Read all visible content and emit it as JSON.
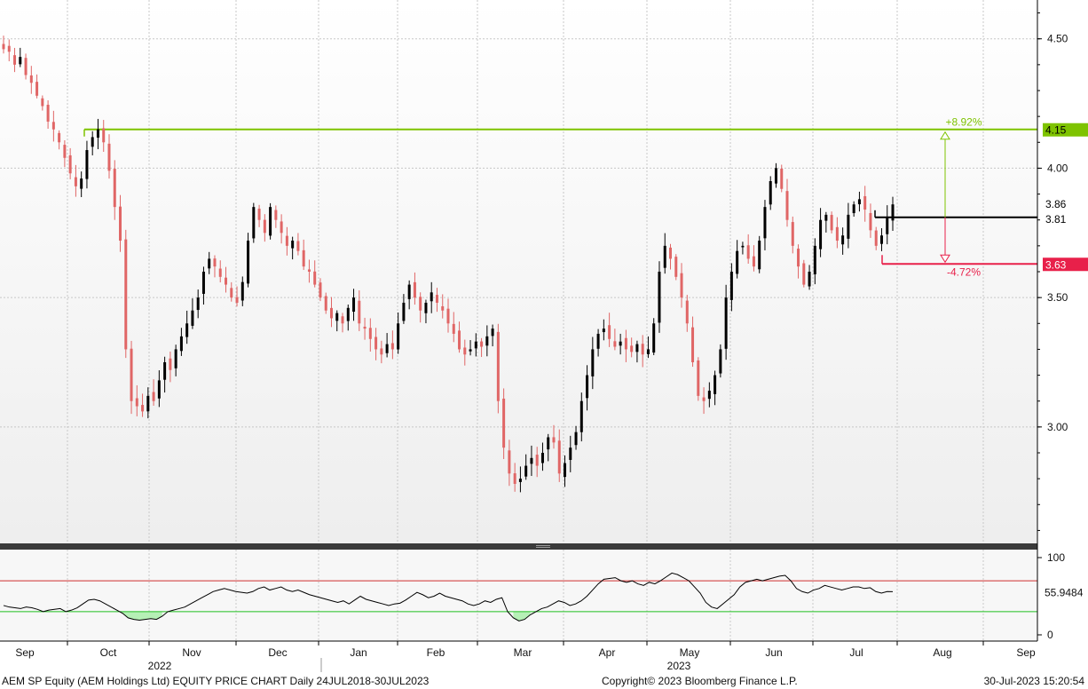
{
  "footer": {
    "left": "AEM SP Equity (AEM Holdings Ltd) EQUITY PRICE CHART  Daily 24JUL2018-30JUL2023",
    "middle": "Copyright© 2023 Bloomberg Finance L.P.",
    "right": "30-Jul-2023 15:20:54"
  },
  "chart_data": [
    {
      "type": "candlestick",
      "ylim": [
        2.55,
        4.65
      ],
      "yticks": [
        "4.50",
        "4.00",
        "3.50",
        "3.00"
      ],
      "ytick_values": [
        4.5,
        4.0,
        3.5,
        3.0
      ],
      "x_month_labels": [
        "Sep",
        "Oct",
        "Nov",
        "Dec",
        "Jan",
        "Feb",
        "Mar",
        "Apr",
        "May",
        "Jun",
        "Jul",
        "Aug",
        "Sep"
      ],
      "year_labels": [
        "2022",
        "2023"
      ],
      "grid": true,
      "up_color": "#000000",
      "down_color": "#e06666",
      "close_series": [
        4.46,
        4.45,
        4.4,
        4.43,
        4.36,
        4.33,
        4.28,
        4.24,
        4.18,
        4.15,
        4.1,
        4.04,
        3.98,
        3.93,
        3.96,
        4.07,
        4.12,
        4.15,
        4.1,
        3.99,
        3.85,
        3.72,
        3.3,
        3.1,
        3.08,
        3.06,
        3.12,
        3.1,
        3.18,
        3.25,
        3.22,
        3.3,
        3.35,
        3.4,
        3.45,
        3.5,
        3.6,
        3.65,
        3.62,
        3.58,
        3.55,
        3.5,
        3.48,
        3.56,
        3.72,
        3.85,
        3.8,
        3.75,
        3.85,
        3.8,
        3.75,
        3.7,
        3.72,
        3.68,
        3.62,
        3.6,
        3.55,
        3.5,
        3.45,
        3.42,
        3.44,
        3.4,
        3.46,
        3.5,
        3.4,
        3.38,
        3.34,
        3.3,
        3.28,
        3.32,
        3.3,
        3.4,
        3.48,
        3.55,
        3.5,
        3.45,
        3.48,
        3.52,
        3.48,
        3.45,
        3.4,
        3.36,
        3.3,
        3.28,
        3.3,
        3.33,
        3.31,
        3.35,
        3.38,
        3.1,
        2.92,
        2.82,
        2.78,
        2.8,
        2.85,
        2.88,
        2.85,
        2.9,
        2.96,
        2.94,
        2.82,
        2.86,
        2.92,
        2.98,
        3.1,
        3.2,
        3.3,
        3.36,
        3.38,
        3.34,
        3.31,
        3.33,
        3.3,
        3.29,
        3.32,
        3.28,
        3.3,
        3.4,
        3.6,
        3.7,
        3.65,
        3.58,
        3.5,
        3.4,
        3.25,
        3.12,
        3.1,
        3.14,
        3.2,
        3.3,
        3.5,
        3.6,
        3.68,
        3.7,
        3.65,
        3.62,
        3.72,
        3.85,
        3.95,
        4.0,
        3.92,
        3.8,
        3.7,
        3.62,
        3.55,
        3.6,
        3.7,
        3.8,
        3.82,
        3.76,
        3.72,
        3.74,
        3.82,
        3.86,
        3.88,
        3.84,
        3.76,
        3.7,
        3.74,
        3.81,
        3.86
      ],
      "levels": [
        {
          "value": 4.15,
          "label": "4.15",
          "color": "#7ec300",
          "annotation": "+8.92%"
        },
        {
          "value": 3.86,
          "label": "3.86",
          "color": "#000000"
        },
        {
          "value": 3.81,
          "label": "3.81",
          "color": "#000000"
        },
        {
          "value": 3.63,
          "label": "3.63",
          "color": "#e8204a",
          "annotation": "-4.72%"
        }
      ]
    },
    {
      "type": "line",
      "ylim": [
        0,
        100
      ],
      "yticks": [
        "100",
        "0"
      ],
      "ytick_values": [
        100,
        0
      ],
      "upper_band": 70,
      "lower_band": 30,
      "last_value_label": "55.9484",
      "last_value": 55.95,
      "fill_color_below_band": "#b6f0b6",
      "values": [
        38,
        36,
        35,
        34,
        36,
        35,
        33,
        30,
        32,
        33,
        34,
        30,
        32,
        35,
        40,
        45,
        46,
        44,
        40,
        36,
        32,
        28,
        22,
        20,
        19,
        20,
        21,
        20,
        24,
        30,
        32,
        34,
        36,
        40,
        44,
        48,
        52,
        56,
        58,
        60,
        58,
        56,
        55,
        54,
        56,
        60,
        62,
        58,
        60,
        62,
        58,
        56,
        58,
        55,
        52,
        50,
        48,
        46,
        44,
        42,
        44,
        40,
        45,
        50,
        46,
        44,
        42,
        40,
        38,
        40,
        41,
        45,
        50,
        55,
        52,
        48,
        50,
        54,
        50,
        48,
        46,
        44,
        40,
        38,
        40,
        44,
        42,
        46,
        48,
        30,
        22,
        18,
        20,
        26,
        30,
        34,
        36,
        40,
        44,
        42,
        38,
        40,
        44,
        50,
        58,
        66,
        72,
        73,
        74,
        70,
        68,
        70,
        66,
        64,
        68,
        66,
        70,
        75,
        80,
        78,
        74,
        70,
        62,
        54,
        42,
        36,
        34,
        40,
        46,
        52,
        62,
        68,
        70,
        72,
        70,
        72,
        74,
        76,
        77,
        70,
        60,
        56,
        54,
        58,
        60,
        64,
        62,
        60,
        58,
        60,
        62,
        62,
        60,
        61,
        56,
        54,
        56,
        55.95
      ]
    }
  ]
}
